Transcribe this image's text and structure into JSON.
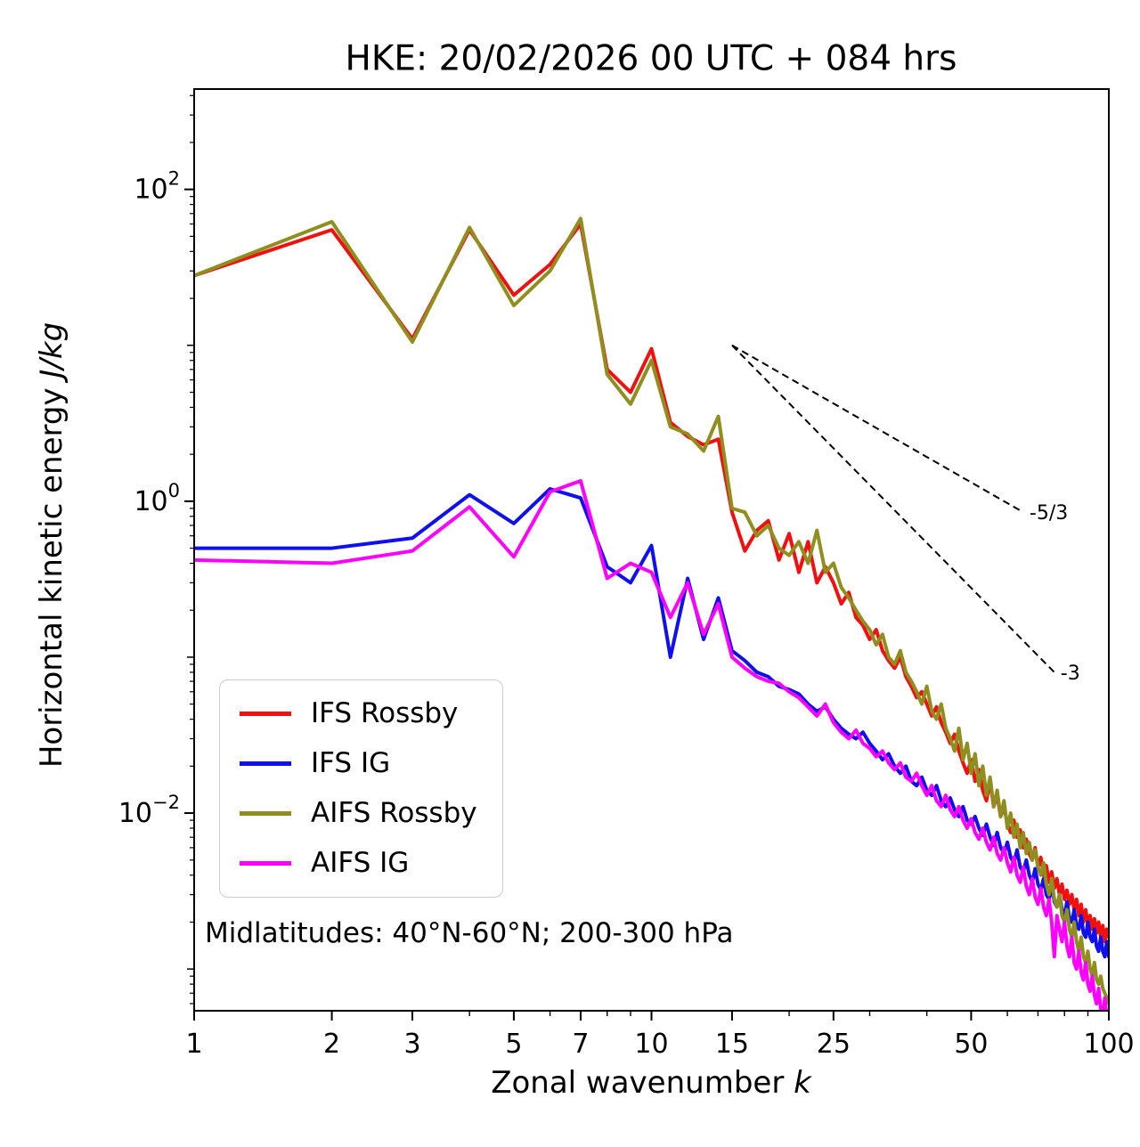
{
  "chart_data": {
    "type": "line",
    "title": "HKE: 20/02/2026 00 UTC + 084 hrs",
    "xlabel": {
      "text": "Zonal wavenumber ",
      "math": "k"
    },
    "ylabel": {
      "text": "Horizontal kinetic energy ",
      "math": "J/kg"
    },
    "annotation": "Midlatitudes: 40°N-60°N; 200-300 hPa",
    "x_scale": "log",
    "y_scale": "log",
    "xlim": [
      1,
      100
    ],
    "ylim": [
      0.00054,
      440
    ],
    "grid": false,
    "legend_position": "lower left",
    "x_major_ticks": [
      1,
      2,
      3,
      5,
      7,
      10,
      15,
      25,
      50,
      100
    ],
    "x_minor_ticks": [
      4,
      6,
      8,
      9,
      20,
      30,
      40,
      60,
      70,
      80,
      90
    ],
    "y_major_ticks": [
      {
        "value": 100,
        "exp": "2"
      },
      {
        "value": 1,
        "exp": "0"
      },
      {
        "value": 0.01,
        "exp": "−2"
      }
    ],
    "y_decade_ticks": [
      10,
      0.1,
      0.001
    ],
    "x": [
      1,
      2,
      3,
      4,
      5,
      6,
      7,
      8,
      9,
      10,
      11,
      12,
      13,
      14,
      15,
      16,
      17,
      18,
      19,
      20,
      21,
      22,
      23,
      24,
      25,
      26,
      27,
      28,
      29,
      30,
      31,
      32,
      33,
      34,
      35,
      36,
      37,
      38,
      39,
      40,
      41,
      42,
      43,
      44,
      45,
      46,
      47,
      48,
      49,
      50,
      51,
      52,
      53,
      54,
      55,
      56,
      57,
      58,
      59,
      60,
      61,
      62,
      63,
      64,
      65,
      66,
      67,
      68,
      69,
      70,
      71,
      72,
      73,
      74,
      75,
      76,
      77,
      78,
      79,
      80,
      81,
      82,
      83,
      84,
      85,
      86,
      87,
      88,
      89,
      90,
      91,
      92,
      93,
      94,
      95,
      96,
      97,
      98,
      99,
      100
    ],
    "series": [
      {
        "name": "IFS Rossby",
        "color": "#f01010",
        "values": [
          28,
          55,
          11,
          55,
          21,
          33,
          60,
          7.0,
          5.0,
          9.5,
          3.2,
          2.6,
          2.3,
          2.5,
          0.85,
          0.48,
          0.65,
          0.75,
          0.42,
          0.62,
          0.35,
          0.55,
          0.3,
          0.38,
          0.3,
          0.22,
          0.26,
          0.18,
          0.16,
          0.13,
          0.15,
          0.11,
          0.095,
          0.085,
          0.1,
          0.075,
          0.065,
          0.055,
          0.06,
          0.05,
          0.042,
          0.048,
          0.038,
          0.033,
          0.028,
          0.032,
          0.025,
          0.021,
          0.018,
          0.022,
          0.016,
          0.019,
          0.014,
          0.012,
          0.016,
          0.011,
          0.013,
          0.0095,
          0.011,
          0.0085,
          0.0075,
          0.009,
          0.007,
          0.0078,
          0.006,
          0.0068,
          0.0055,
          0.005,
          0.006,
          0.0045,
          0.0052,
          0.004,
          0.0046,
          0.0036,
          0.0042,
          0.0033,
          0.0038,
          0.003,
          0.0035,
          0.0028,
          0.0032,
          0.0026,
          0.003,
          0.0024,
          0.0028,
          0.0022,
          0.0026,
          0.002,
          0.0024,
          0.0019,
          0.0022,
          0.0018,
          0.0021,
          0.0017,
          0.002,
          0.0016,
          0.0019,
          0.0015,
          0.0018,
          0.0016
        ]
      },
      {
        "name": "IFS IG",
        "color": "#1010ee",
        "values": [
          0.5,
          0.5,
          0.58,
          1.1,
          0.72,
          1.2,
          1.05,
          0.38,
          0.3,
          0.52,
          0.1,
          0.32,
          0.13,
          0.24,
          0.11,
          0.095,
          0.08,
          0.075,
          0.065,
          0.062,
          0.058,
          0.05,
          0.045,
          0.048,
          0.04,
          0.035,
          0.032,
          0.03,
          0.033,
          0.028,
          0.025,
          0.022,
          0.024,
          0.02,
          0.018,
          0.02,
          0.016,
          0.015,
          0.017,
          0.014,
          0.013,
          0.015,
          0.012,
          0.011,
          0.0125,
          0.0105,
          0.0095,
          0.011,
          0.009,
          0.0085,
          0.0095,
          0.008,
          0.0072,
          0.0085,
          0.007,
          0.0062,
          0.0075,
          0.006,
          0.0055,
          0.0065,
          0.0052,
          0.0048,
          0.0058,
          0.0045,
          0.0042,
          0.005,
          0.004,
          0.0036,
          0.0044,
          0.0035,
          0.0032,
          0.0038,
          0.003,
          0.0028,
          0.0034,
          0.0027,
          0.0025,
          0.003,
          0.0024,
          0.0022,
          0.0027,
          0.0021,
          0.002,
          0.0024,
          0.0019,
          0.0018,
          0.0022,
          0.0017,
          0.0016,
          0.002,
          0.0016,
          0.0015,
          0.0018,
          0.0014,
          0.0013,
          0.0016,
          0.0013,
          0.0012,
          0.0015,
          0.0012
        ]
      },
      {
        "name": "AIFS Rossby",
        "color": "#8f8f1f",
        "values": [
          28,
          62,
          10.5,
          57,
          18,
          30,
          65,
          6.5,
          4.2,
          8.0,
          3.0,
          2.7,
          2.1,
          3.5,
          0.9,
          0.85,
          0.6,
          0.7,
          0.5,
          0.45,
          0.55,
          0.4,
          0.65,
          0.35,
          0.4,
          0.28,
          0.24,
          0.2,
          0.17,
          0.15,
          0.12,
          0.14,
          0.1,
          0.09,
          0.11,
          0.08,
          0.07,
          0.06,
          0.05,
          0.065,
          0.045,
          0.04,
          0.05,
          0.035,
          0.03,
          0.025,
          0.035,
          0.022,
          0.028,
          0.018,
          0.024,
          0.015,
          0.02,
          0.013,
          0.017,
          0.011,
          0.014,
          0.0095,
          0.012,
          0.008,
          0.01,
          0.007,
          0.0085,
          0.006,
          0.0075,
          0.0055,
          0.0065,
          0.005,
          0.0058,
          0.0045,
          0.004,
          0.0048,
          0.0035,
          0.003,
          0.0038,
          0.0028,
          0.0025,
          0.003,
          0.0022,
          0.002,
          0.0024,
          0.0018,
          0.0016,
          0.002,
          0.0015,
          0.0013,
          0.0016,
          0.0012,
          0.0011,
          0.0013,
          0.001,
          0.0009,
          0.0011,
          0.00085,
          0.0008,
          0.0009,
          0.00075,
          0.0007,
          0.00065,
          0.0006
        ]
      },
      {
        "name": "AIFS IG",
        "color": "#ff00ff",
        "values": [
          0.42,
          0.4,
          0.48,
          0.92,
          0.44,
          1.15,
          1.35,
          0.32,
          0.4,
          0.35,
          0.18,
          0.3,
          0.14,
          0.22,
          0.1,
          0.085,
          0.075,
          0.07,
          0.068,
          0.06,
          0.055,
          0.048,
          0.042,
          0.05,
          0.038,
          0.033,
          0.03,
          0.034,
          0.028,
          0.026,
          0.023,
          0.025,
          0.021,
          0.019,
          0.021,
          0.017,
          0.016,
          0.018,
          0.015,
          0.013,
          0.015,
          0.012,
          0.011,
          0.013,
          0.0105,
          0.0095,
          0.011,
          0.009,
          0.008,
          0.0092,
          0.0075,
          0.0068,
          0.008,
          0.0065,
          0.0058,
          0.007,
          0.0055,
          0.005,
          0.006,
          0.0048,
          0.0042,
          0.0052,
          0.004,
          0.0036,
          0.0045,
          0.0034,
          0.003,
          0.0038,
          0.0029,
          0.0026,
          0.0033,
          0.0025,
          0.0022,
          0.0028,
          0.002,
          0.0012,
          0.0022,
          0.0018,
          0.0015,
          0.002,
          0.0014,
          0.0012,
          0.0016,
          0.0011,
          0.001,
          0.0013,
          0.00095,
          0.00085,
          0.0011,
          0.0008,
          0.00072,
          0.0009,
          0.00068,
          0.0006,
          0.00075,
          0.00055,
          0.0005,
          0.00065,
          0.00048,
          0.00042
        ]
      }
    ],
    "reference_lines": [
      {
        "label": "-5/3",
        "x": [
          15,
          65
        ],
        "y": [
          10,
          0.85
        ]
      },
      {
        "label": "-3",
        "x": [
          15,
          76
        ],
        "y": [
          10,
          0.08
        ]
      }
    ]
  }
}
